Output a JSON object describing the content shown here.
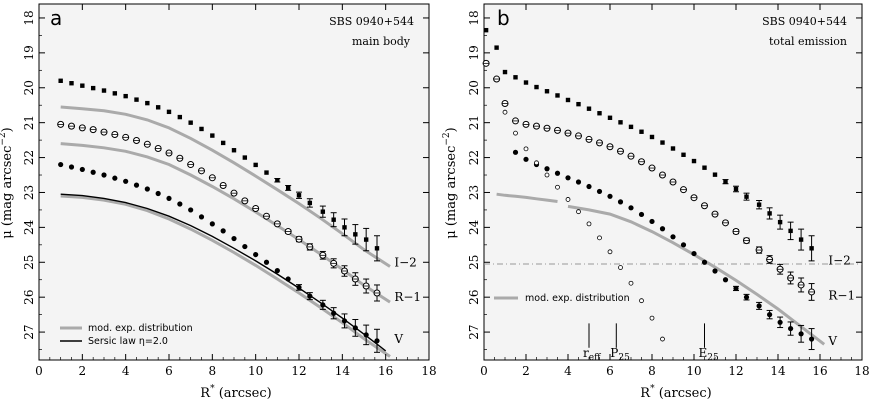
{
  "chart_data": [
    {
      "type": "scatter",
      "panel": "a",
      "annotation": [
        "SBS 0940+544",
        "main body"
      ],
      "xlabel": "R",
      "xlabel_sup": "*",
      "xlabel_rest": " (arcsec)",
      "ylabel": "μ (mag arcsec",
      "ylabel_sup": "−2",
      "ylabel_end": ")",
      "xlim": [
        0,
        18
      ],
      "ylim": [
        27.8,
        17.6
      ],
      "y_inverted": true,
      "xticks": [
        0,
        2,
        4,
        6,
        8,
        10,
        12,
        14,
        16,
        18
      ],
      "yticks": [
        18,
        19,
        20,
        21,
        22,
        23,
        24,
        25,
        26,
        27
      ],
      "grid": false,
      "legend_position": "bottom-left",
      "legend": [
        {
          "label": "mod. exp. distribution",
          "color": "#aaaaaa"
        },
        {
          "label": "Sersic law η=2.0",
          "color": "#000000"
        }
      ],
      "series": [
        {
          "name": "I−2",
          "marker": "square-filled",
          "x": [
            1.0,
            1.5,
            2.0,
            2.5,
            3.0,
            3.5,
            4.0,
            4.5,
            5.0,
            5.5,
            6.0,
            6.5,
            7.0,
            7.5,
            8.0,
            8.5,
            9.0,
            9.5,
            10.0,
            10.5,
            11.0,
            11.5,
            12.0,
            12.5,
            13.1,
            13.6,
            14.1,
            14.6,
            15.1,
            15.6
          ],
          "y": [
            19.8,
            19.87,
            19.94,
            20.01,
            20.08,
            20.16,
            20.24,
            20.34,
            20.44,
            20.56,
            20.69,
            20.84,
            21.0,
            21.18,
            21.37,
            21.58,
            21.79,
            22.0,
            22.21,
            22.43,
            22.65,
            22.87,
            23.08,
            23.3,
            23.55,
            23.78,
            24.0,
            24.2,
            24.35,
            24.6
          ],
          "err": [
            0,
            0,
            0,
            0,
            0,
            0,
            0,
            0,
            0,
            0,
            0,
            0,
            0,
            0,
            0,
            0,
            0,
            0,
            0,
            0,
            0.05,
            0.07,
            0.09,
            0.12,
            0.16,
            0.2,
            0.24,
            0.28,
            0.32,
            0.36
          ]
        },
        {
          "name": "R−1",
          "marker": "circle-open",
          "x": [
            1.0,
            1.5,
            2.0,
            2.5,
            3.0,
            3.5,
            4.0,
            4.5,
            5.0,
            5.5,
            6.0,
            6.5,
            7.0,
            7.5,
            8.0,
            8.5,
            9.0,
            9.5,
            10.0,
            10.5,
            11.0,
            11.5,
            12.0,
            12.5,
            13.1,
            13.6,
            14.1,
            14.6,
            15.1,
            15.6
          ],
          "y": [
            21.05,
            21.1,
            21.15,
            21.2,
            21.27,
            21.34,
            21.42,
            21.51,
            21.62,
            21.74,
            21.87,
            22.02,
            22.2,
            22.38,
            22.58,
            22.8,
            23.02,
            23.24,
            23.46,
            23.68,
            23.9,
            24.12,
            24.34,
            24.56,
            24.8,
            25.03,
            25.25,
            25.48,
            25.68,
            25.88
          ],
          "err": [
            0,
            0,
            0,
            0,
            0,
            0,
            0,
            0,
            0,
            0,
            0,
            0,
            0,
            0,
            0,
            0,
            0,
            0,
            0,
            0,
            0,
            0.05,
            0.07,
            0.09,
            0.11,
            0.13,
            0.15,
            0.18,
            0.2,
            0.23
          ]
        },
        {
          "name": "V",
          "marker": "circle-filled",
          "x": [
            1.0,
            1.5,
            2.0,
            2.5,
            3.0,
            3.5,
            4.0,
            4.5,
            5.0,
            5.5,
            6.0,
            6.5,
            7.0,
            7.5,
            8.0,
            8.5,
            9.0,
            9.5,
            10.0,
            10.5,
            11.0,
            11.5,
            12.0,
            12.5,
            13.1,
            13.6,
            14.1,
            14.6,
            15.1,
            15.6
          ],
          "y": [
            22.2,
            22.27,
            22.34,
            22.42,
            22.5,
            22.59,
            22.68,
            22.79,
            22.9,
            23.03,
            23.17,
            23.33,
            23.5,
            23.7,
            23.9,
            24.1,
            24.32,
            24.55,
            24.78,
            25.0,
            25.24,
            25.48,
            25.72,
            25.97,
            26.22,
            26.46,
            26.68,
            26.88,
            27.08,
            27.25
          ],
          "err": [
            0,
            0,
            0,
            0,
            0,
            0,
            0,
            0,
            0,
            0,
            0,
            0,
            0,
            0,
            0,
            0,
            0,
            0,
            0,
            0,
            0,
            0,
            0.08,
            0.1,
            0.13,
            0.16,
            0.2,
            0.24,
            0.28,
            0.33
          ]
        }
      ],
      "band_labels": [
        {
          "text": "I−2",
          "x": 16.4,
          "y": 25.0
        },
        {
          "text": "R−1",
          "x": 16.4,
          "y": 26.0
        },
        {
          "text": "V",
          "x": 16.4,
          "y": 27.2
        }
      ],
      "model_curves": [
        {
          "style": "gray",
          "x": [
            1.0,
            2,
            3,
            4,
            5,
            6,
            7,
            8,
            9,
            10,
            11,
            12,
            13,
            14,
            15,
            16.2
          ],
          "y": [
            20.55,
            20.6,
            20.66,
            20.76,
            20.92,
            21.15,
            21.45,
            21.79,
            22.15,
            22.53,
            22.92,
            23.32,
            23.74,
            24.18,
            24.64,
            25.12
          ]
        },
        {
          "style": "gray",
          "x": [
            1.0,
            2,
            3,
            4,
            5,
            6,
            7,
            8,
            9,
            10,
            11,
            12,
            13,
            14,
            15,
            16.2
          ],
          "y": [
            21.6,
            21.65,
            21.72,
            21.82,
            21.98,
            22.2,
            22.5,
            22.83,
            23.18,
            23.56,
            23.95,
            24.35,
            24.77,
            25.2,
            25.66,
            26.14
          ]
        },
        {
          "style": "gray",
          "x": [
            1.0,
            2,
            3,
            4,
            5,
            6,
            7,
            8,
            9,
            10,
            11,
            12,
            13,
            14,
            15,
            16.2
          ],
          "y": [
            23.1,
            23.14,
            23.22,
            23.34,
            23.52,
            23.76,
            24.05,
            24.37,
            24.72,
            25.09,
            25.48,
            25.88,
            26.3,
            26.73,
            27.19,
            27.7
          ]
        },
        {
          "style": "black",
          "x": [
            1.0,
            2,
            3,
            4,
            5,
            6,
            7,
            8,
            9,
            10,
            11,
            12,
            13,
            14,
            15,
            16.0
          ],
          "y": [
            23.05,
            23.09,
            23.17,
            23.29,
            23.46,
            23.68,
            23.95,
            24.26,
            24.6,
            24.96,
            25.34,
            25.74,
            26.16,
            26.6,
            27.06,
            27.54
          ]
        }
      ]
    },
    {
      "type": "scatter",
      "panel": "b",
      "annotation": [
        "SBS 0940+544",
        "total emission"
      ],
      "xlabel": "R",
      "xlabel_sup": "*",
      "xlabel_rest": " (arcsec)",
      "ylabel": "μ (mag arcsec",
      "ylabel_sup": "−2",
      "ylabel_end": ")",
      "xlim": [
        0,
        18
      ],
      "ylim": [
        27.8,
        17.6
      ],
      "y_inverted": true,
      "xticks": [
        0,
        2,
        4,
        6,
        8,
        10,
        12,
        14,
        16,
        18
      ],
      "yticks": [
        18,
        19,
        20,
        21,
        22,
        23,
        24,
        25,
        26,
        27
      ],
      "grid": false,
      "legend_position": "bottom-left",
      "legend": [
        {
          "label": "mod. exp. distribution",
          "color": "#aaaaaa"
        }
      ],
      "series": [
        {
          "name": "I−2",
          "marker": "square-filled",
          "x": [
            0.1,
            0.6,
            1.0,
            1.5,
            2.0,
            2.5,
            3.0,
            3.5,
            4.0,
            4.5,
            5.0,
            5.5,
            6.0,
            6.5,
            7.0,
            7.5,
            8.0,
            8.5,
            9.0,
            9.5,
            10.0,
            10.5,
            11.0,
            11.5,
            12.0,
            12.5,
            13.1,
            13.6,
            14.1,
            14.6,
            15.1,
            15.6
          ],
          "y": [
            18.35,
            18.85,
            19.55,
            19.7,
            19.85,
            19.98,
            20.1,
            20.22,
            20.35,
            20.47,
            20.6,
            20.73,
            20.86,
            20.99,
            21.12,
            21.26,
            21.41,
            21.57,
            21.74,
            21.92,
            22.1,
            22.29,
            22.49,
            22.69,
            22.9,
            23.12,
            23.35,
            23.6,
            23.85,
            24.1,
            24.35,
            24.6
          ],
          "err": [
            0,
            0,
            0,
            0,
            0,
            0,
            0,
            0,
            0,
            0,
            0,
            0,
            0,
            0,
            0,
            0,
            0,
            0,
            0,
            0,
            0,
            0,
            0,
            0.06,
            0.08,
            0.1,
            0.12,
            0.16,
            0.2,
            0.25,
            0.3,
            0.36
          ]
        },
        {
          "name": "R−1",
          "marker": "circle-open",
          "x": [
            0.1,
            0.6,
            1.0,
            1.5,
            2.0,
            2.5,
            3.0,
            3.5,
            4.0,
            4.5,
            5.0,
            5.5,
            6.0,
            6.5,
            7.0,
            7.5,
            8.0,
            8.5,
            9.0,
            9.5,
            10.0,
            10.5,
            11.0,
            11.5,
            12.0,
            12.5,
            13.1,
            13.6,
            14.1,
            14.6,
            15.1,
            15.6
          ],
          "y": [
            19.3,
            19.75,
            20.45,
            20.95,
            21.05,
            21.1,
            21.16,
            21.22,
            21.3,
            21.38,
            21.48,
            21.58,
            21.69,
            21.82,
            21.96,
            22.12,
            22.3,
            22.5,
            22.7,
            22.92,
            23.15,
            23.38,
            23.62,
            23.87,
            24.12,
            24.38,
            24.65,
            24.92,
            25.2,
            25.45,
            25.65,
            25.85
          ],
          "err": [
            0,
            0,
            0,
            0,
            0,
            0,
            0,
            0,
            0,
            0,
            0,
            0,
            0,
            0,
            0,
            0,
            0,
            0,
            0,
            0,
            0,
            0,
            0,
            0,
            0.06,
            0.07,
            0.09,
            0.11,
            0.14,
            0.17,
            0.2,
            0.24
          ]
        },
        {
          "name": "V",
          "marker": "circle-filled",
          "x": [
            1.5,
            2.0,
            2.5,
            3.0,
            3.5,
            4.0,
            4.5,
            5.0,
            5.5,
            6.0,
            6.5,
            7.0,
            7.5,
            8.0,
            8.5,
            9.0,
            9.5,
            10.0,
            10.5,
            11.0,
            11.5,
            12.0,
            12.5,
            13.1,
            13.6,
            14.1,
            14.6,
            15.1,
            15.6
          ],
          "y": [
            21.85,
            22.05,
            22.2,
            22.32,
            22.45,
            22.58,
            22.7,
            22.83,
            22.97,
            23.11,
            23.27,
            23.44,
            23.63,
            23.83,
            24.04,
            24.27,
            24.5,
            24.75,
            25.0,
            25.25,
            25.5,
            25.75,
            26.0,
            26.25,
            26.5,
            26.72,
            26.9,
            27.05,
            27.2
          ],
          "err": [
            0,
            0,
            0,
            0,
            0,
            0,
            0,
            0,
            0,
            0,
            0,
            0,
            0,
            0,
            0,
            0,
            0,
            0,
            0,
            0,
            0,
            0.06,
            0.08,
            0.1,
            0.12,
            0.15,
            0.19,
            0.24,
            0.3
          ]
        },
        {
          "name": "residual",
          "marker": "circle-small-open",
          "x": [
            1.0,
            1.5,
            2.0,
            2.5,
            3.0,
            3.5,
            4.0,
            4.5,
            5.0,
            5.5,
            6.0,
            6.5,
            7.0,
            7.5,
            8.0,
            8.5
          ],
          "y": [
            20.7,
            21.3,
            21.75,
            22.15,
            22.5,
            22.85,
            23.2,
            23.55,
            23.9,
            24.3,
            24.7,
            25.15,
            25.6,
            26.1,
            26.6,
            27.2
          ],
          "err": []
        }
      ],
      "band_labels": [
        {
          "text": "I−2",
          "x": 16.4,
          "y": 24.95
        },
        {
          "text": "R−1",
          "x": 16.4,
          "y": 25.95
        },
        {
          "text": "V",
          "x": 16.4,
          "y": 27.25
        }
      ],
      "model_curves": [
        {
          "style": "gray",
          "x": [
            0.6,
            1,
            1.5,
            2,
            2.5,
            3,
            3.5
          ],
          "y": [
            23.05,
            23.08,
            23.11,
            23.14,
            23.18,
            23.22,
            23.26
          ]
        },
        {
          "style": "gray",
          "x": [
            4,
            5,
            6,
            7,
            8,
            9,
            10,
            11,
            12,
            13,
            14,
            15,
            16.2
          ],
          "y": [
            23.4,
            23.5,
            23.62,
            23.84,
            24.12,
            24.44,
            24.78,
            25.14,
            25.52,
            25.92,
            26.34,
            26.8,
            27.35
          ]
        }
      ],
      "threshold_line": {
        "y": 25.0,
        "style": "dash-dot"
      },
      "markers": [
        {
          "label_main": "r",
          "label_sub": "eff",
          "x": 5.0
        },
        {
          "label_main": "P",
          "label_sub": "25",
          "x": 6.3
        },
        {
          "label_main": "E",
          "label_sub": "25",
          "x": 10.5
        }
      ]
    }
  ]
}
